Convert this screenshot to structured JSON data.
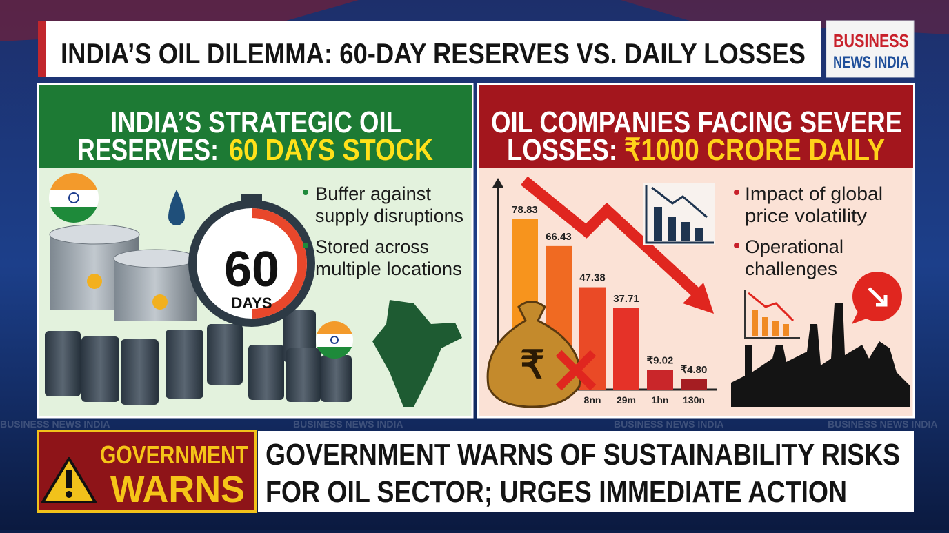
{
  "header": {
    "title": "INDIA’S OIL DILEMMA: 60-DAY RESERVES VS. DAILY LOSSES",
    "logo": [
      "BUSINESS",
      "NEWS INDIA"
    ]
  },
  "left_panel": {
    "title_line1": "INDIA’S STRATEGIC OIL",
    "title_line2": "RESERVES:",
    "title_highlight": "60 DAYS STOCK",
    "timer": {
      "number": "60",
      "unit": "DAYS"
    },
    "bullets": [
      [
        "Buffer against",
        "supply disruptions"
      ],
      [
        "Stored across",
        "multiple locations"
      ]
    ]
  },
  "right_panel": {
    "title_line1": "OIL COMPANIES FACING SEVERE",
    "title_line2": "LOSSES:",
    "title_highlight": "₹1000 CRORE DAILY",
    "bullets": [
      [
        "Impact of global",
        "price volatility"
      ],
      [
        "Operational",
        "challenges"
      ]
    ]
  },
  "chart_data": {
    "type": "bar",
    "categories": [
      null,
      null,
      "8nn",
      "29m",
      "1hn",
      "130n"
    ],
    "values": [
      78.83,
      66.43,
      47.38,
      37.71,
      9.02,
      4.8
    ],
    "value_labels": [
      "78.83",
      "66.43",
      "47.38",
      "37.71",
      "₹9.02",
      "₹4.80"
    ],
    "colors": [
      "#f7941d",
      "#f06a22",
      "#ea4a26",
      "#e53228",
      "#c9262a",
      "#a51d22"
    ]
  },
  "watermark": "BUSINESS NEWS INDIA",
  "alert": {
    "badge": [
      "GOVERNMENT",
      "WARNS"
    ],
    "headline": [
      "GOVERNMENT WARNS OF SUSTAINABILITY RISKS",
      "FOR OIL SECTOR; URGES IMMEDIATE ACTION"
    ]
  }
}
